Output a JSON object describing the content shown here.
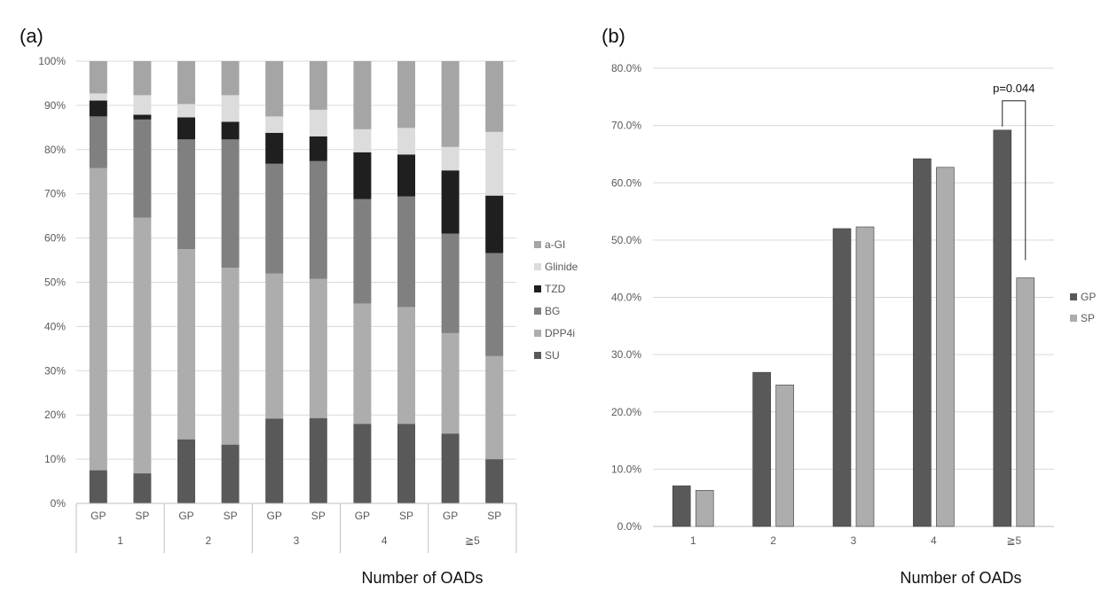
{
  "chart_data": [
    {
      "type": "bar",
      "stacked": true,
      "panel_label": "(a)",
      "title": "",
      "xlabel": "Number of OADs",
      "ylabel": "",
      "ylim": [
        0,
        100
      ],
      "y_ticks": [
        "0%",
        "10%",
        "20%",
        "30%",
        "40%",
        "50%",
        "60%",
        "70%",
        "80%",
        "90%",
        "100%"
      ],
      "groups": [
        "1",
        "2",
        "3",
        "4",
        "≧5"
      ],
      "subcategories": [
        "GP",
        "SP"
      ],
      "categories": [
        "GP",
        "SP",
        "GP",
        "SP",
        "GP",
        "SP",
        "GP",
        "SP",
        "GP",
        "SP"
      ],
      "grid": true,
      "legend": "right",
      "series": [
        {
          "name": "SU",
          "color": "#595959",
          "values": [
            7.5,
            6.8,
            14.5,
            13.3,
            19.2,
            19.3,
            18.0,
            18.0,
            15.8,
            10.0
          ]
        },
        {
          "name": "DPP4i",
          "color": "#adadad",
          "values": [
            68.3,
            57.8,
            43.0,
            40.0,
            32.8,
            31.5,
            27.2,
            26.4,
            22.7,
            23.3
          ]
        },
        {
          "name": "BG",
          "color": "#808080",
          "values": [
            11.7,
            22.2,
            24.8,
            29.0,
            24.8,
            26.6,
            23.6,
            25.0,
            22.5,
            23.3
          ]
        },
        {
          "name": "TZD",
          "color": "#1f1f1f",
          "values": [
            3.6,
            1.1,
            5.0,
            4.0,
            7.0,
            5.6,
            10.6,
            9.5,
            14.3,
            13.0
          ]
        },
        {
          "name": "Glinide",
          "color": "#dcdcdc",
          "values": [
            1.6,
            4.4,
            3.0,
            6.0,
            3.7,
            6.0,
            5.2,
            6.0,
            5.3,
            14.4
          ]
        },
        {
          "name": "a-GI",
          "color": "#a5a5a5",
          "values": [
            7.3,
            7.7,
            9.7,
            7.7,
            12.5,
            11.0,
            15.4,
            15.1,
            19.4,
            16.0
          ]
        }
      ],
      "legend_order": [
        "a-GI",
        "Glinide",
        "TZD",
        "BG",
        "DPP4i",
        "SU"
      ]
    },
    {
      "type": "bar",
      "panel_label": "(b)",
      "title": "",
      "xlabel": "Number of OADs",
      "ylabel": "",
      "ylim": [
        0,
        80
      ],
      "y_ticks": [
        "0.0%",
        "10.0%",
        "20.0%",
        "30.0%",
        "40.0%",
        "50.0%",
        "60.0%",
        "70.0%",
        "80.0%"
      ],
      "categories": [
        "1",
        "2",
        "3",
        "4",
        "≧5"
      ],
      "grid": true,
      "legend": "right",
      "series": [
        {
          "name": "GP",
          "color": "#595959",
          "values": [
            7.1,
            26.9,
            52.0,
            64.2,
            69.2
          ]
        },
        {
          "name": "SP",
          "color": "#adadad",
          "values": [
            6.3,
            24.7,
            52.3,
            62.7,
            43.4
          ]
        }
      ],
      "annotation": {
        "text": "p=0.044",
        "category": "≧5"
      }
    }
  ]
}
